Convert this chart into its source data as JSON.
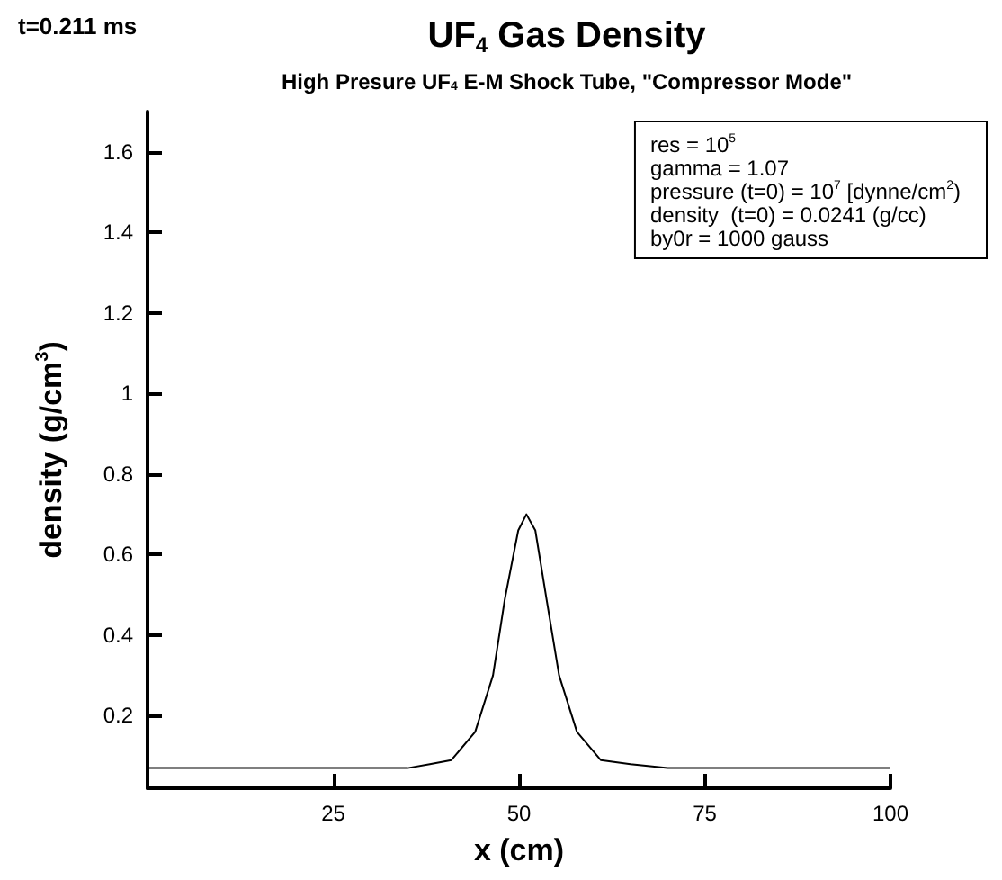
{
  "chart_data": {
    "type": "line",
    "title": "UF$_{4}$ Gas Density",
    "subtitle": "High Presure UF$_{4}$ E-M Shock Tube, \"Compressor Mode\"",
    "xlabel": "x (cm)",
    "ylabel": "density (g/cm$^{3}$)",
    "annotations": [
      "t=0.211 ms",
      "res = 10$^{5}$",
      "gamma = 1.07",
      "pressure (t=0) = 10$^{7}$ [dynne/cm$^{2}$)",
      "density  (t=0) = 0.0241 (g/cc)",
      "by0r = 1000 gauss"
    ],
    "x": [
      0,
      5,
      10,
      15,
      20,
      25,
      30,
      35,
      38,
      40.9,
      44.1,
      46.5,
      48.1,
      49.9,
      51.0,
      52.2,
      53.7,
      55.4,
      57.8,
      61.0,
      65,
      70,
      75,
      80,
      85,
      90,
      95,
      100
    ],
    "series": [
      {
        "color": "#000000",
        "values": [
          0.07,
          0.07,
          0.07,
          0.07,
          0.07,
          0.07,
          0.07,
          0.07,
          0.08,
          0.09,
          0.16,
          0.3,
          0.49,
          0.66,
          0.7,
          0.66,
          0.49,
          0.3,
          0.16,
          0.09,
          0.08,
          0.07,
          0.07,
          0.07,
          0.07,
          0.07,
          0.07,
          0.07
        ]
      }
    ],
    "xlim": [
      0,
      100
    ],
    "ylim": [
      0.02,
      1.7
    ],
    "xticks": [
      25,
      50,
      75,
      100
    ],
    "yticks": [
      0.2,
      0.4,
      0.6,
      0.8,
      1,
      1.2,
      1.4,
      1.6
    ]
  }
}
